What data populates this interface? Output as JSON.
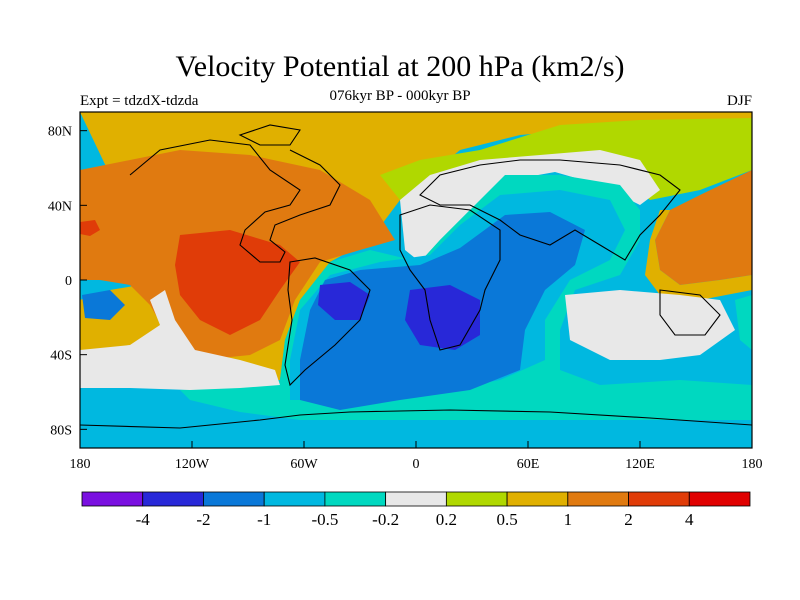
{
  "title": "Velocity Potential at 200 hPa (km2/s)",
  "subtitle_left": "Expt = tdzdX-tdzda",
  "subtitle_center": "076kyr BP - 000kyr BP",
  "subtitle_right": "DJF",
  "map": {
    "lon_range": [
      -180,
      180
    ],
    "lat_range": [
      -90,
      90
    ],
    "lon_ticks": [
      {
        "value": -180,
        "label": "180"
      },
      {
        "value": -120,
        "label": "120W"
      },
      {
        "value": -60,
        "label": "60W"
      },
      {
        "value": 0,
        "label": "0"
      },
      {
        "value": 60,
        "label": "60E"
      },
      {
        "value": 120,
        "label": "120E"
      },
      {
        "value": 180,
        "label": "180"
      }
    ],
    "lat_ticks": [
      {
        "value": 80,
        "label": "80N"
      },
      {
        "value": 40,
        "label": "40N"
      },
      {
        "value": 0,
        "label": "0"
      },
      {
        "value": -40,
        "label": "40S"
      },
      {
        "value": -80,
        "label": "80S"
      }
    ]
  },
  "colorbar": {
    "colors": [
      "#7a10e0",
      "#2828d8",
      "#0a78d8",
      "#00b8e0",
      "#00d8c0",
      "#e8e8e8",
      "#b0d800",
      "#e0b000",
      "#e07a10",
      "#e03c08",
      "#e00000"
    ],
    "labels": [
      "-4",
      "-2",
      "-1",
      "-0.5",
      "-0.2",
      "0.2",
      "0.5",
      "1",
      "2",
      "4"
    ]
  }
}
